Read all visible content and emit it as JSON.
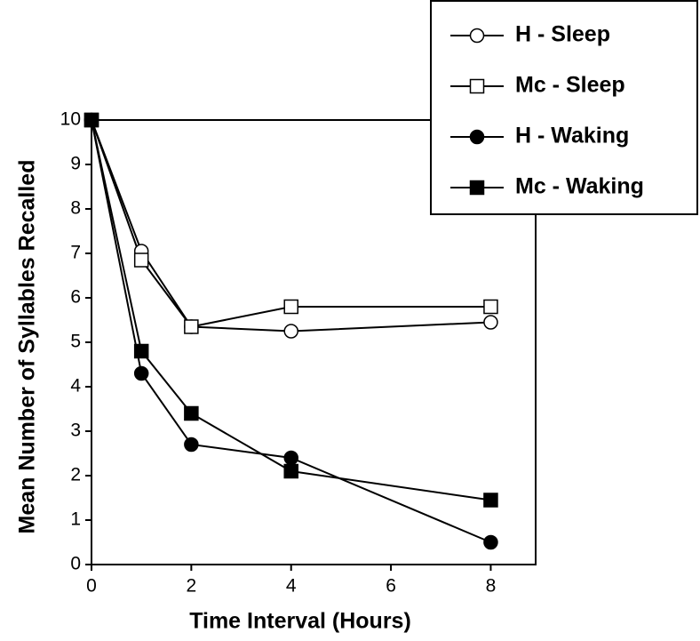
{
  "chart_data": {
    "type": "line",
    "x_label": "Time Interval (Hours)",
    "y_label": "Mean Number of Syllables Recalled",
    "x": [
      0,
      1,
      2,
      4,
      8
    ],
    "series": [
      {
        "name": "H - Sleep",
        "color": "#000000",
        "marker": "circle",
        "filled": false,
        "values": [
          10,
          7.05,
          5.35,
          5.25,
          5.45
        ]
      },
      {
        "name": "Mc - Sleep",
        "color": "#000000",
        "marker": "square",
        "filled": false,
        "values": [
          10,
          6.85,
          5.35,
          5.8,
          5.8
        ]
      },
      {
        "name": "H - Waking",
        "color": "#000000",
        "marker": "circle",
        "filled": true,
        "values": [
          10,
          4.3,
          2.7,
          2.4,
          0.5
        ]
      },
      {
        "name": "Mc - Waking",
        "color": "#000000",
        "marker": "square",
        "filled": true,
        "values": [
          10,
          4.8,
          3.4,
          2.1,
          1.45
        ]
      }
    ],
    "xlim": [
      0,
      8.9
    ],
    "xticks": [
      0,
      2,
      4,
      6,
      8
    ],
    "ylim": [
      0,
      10
    ],
    "yticks": [
      0,
      1,
      2,
      3,
      4,
      5,
      6,
      7,
      8,
      9,
      10
    ],
    "legend": "upper right"
  }
}
